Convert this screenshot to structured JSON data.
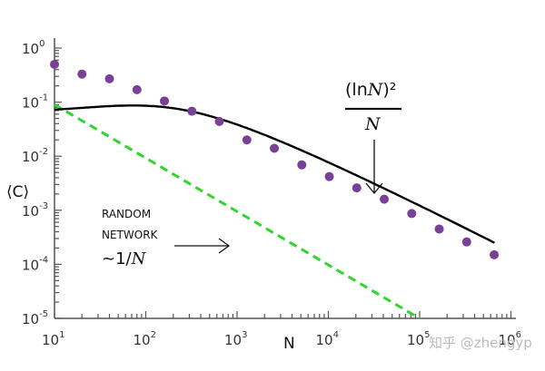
{
  "chart_data": {
    "type": "scatter",
    "xscale": "log",
    "yscale": "log",
    "xlabel": "N",
    "ylabel": "⟨C⟩",
    "xlim": [
      10,
      1000000
    ],
    "ylim": [
      1e-05,
      1
    ],
    "x_ticks": [
      "10^1",
      "10^2",
      "10^3",
      "10^4",
      "10^5",
      "10^6"
    ],
    "y_ticks": [
      "10^0",
      "10^-1",
      "10^-2",
      "10^-3",
      "10^-4",
      "10^-5"
    ],
    "series": [
      {
        "name": "data points",
        "style": "purple dots",
        "color": "#7a3f96",
        "x": [
          10,
          20,
          40,
          80,
          160,
          320,
          640,
          1280,
          2560,
          5120,
          10240,
          20480,
          40960,
          81920,
          163840,
          327680,
          655360
        ],
        "y": [
          0.5,
          0.33,
          0.27,
          0.17,
          0.105,
          0.068,
          0.044,
          0.02,
          0.014,
          0.0069,
          0.0042,
          0.0026,
          0.0016,
          0.00087,
          0.00045,
          0.00026,
          0.00015
        ]
      },
      {
        "name": "(ln N)^2 / N",
        "style": "solid black line",
        "color": "#000000"
      },
      {
        "name": "random network ~1/N",
        "style": "dashed green line",
        "color": "#2fd62f",
        "x": [
          10,
          100000
        ],
        "y": [
          0.09,
          1e-05
        ]
      }
    ],
    "annotations": [
      "(ln N)^2 / N",
      "RANDOM NETWORK ~1/N"
    ]
  },
  "labels": {
    "x_axis": "N",
    "y_axis": "⟨C⟩",
    "formula_num": "(ln",
    "formula_var": "N",
    "formula_close": ")²",
    "formula_den": "N",
    "random_1": "RANDOM",
    "random_2": "NETWORK",
    "random_3": "~1/",
    "random_var": "N",
    "watermark": "知乎 @zhengyp"
  }
}
